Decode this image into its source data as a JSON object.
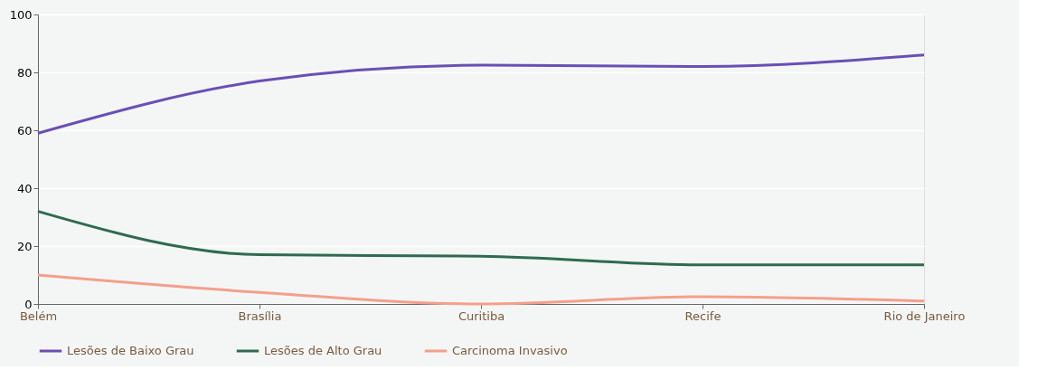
{
  "chart_data": {
    "type": "line",
    "categories": [
      "Belém",
      "Brasília",
      "Curitiba",
      "Recife",
      "Rio de Janeiro"
    ],
    "series": [
      {
        "name": "Lesões de Baixo Grau",
        "color": "#6a4fb5",
        "values": [
          59,
          77,
          82.5,
          82,
          86
        ]
      },
      {
        "name": "Lesões de Alto Grau",
        "color": "#2e6b4f",
        "values": [
          32,
          17,
          16.5,
          13.5,
          13.5
        ]
      },
      {
        "name": "Carcinoma Invasivo",
        "color": "#f4a08a",
        "values": [
          10,
          4,
          0,
          2.5,
          1
        ]
      }
    ],
    "ylim": [
      0,
      100
    ],
    "yticks": [
      0,
      20,
      40,
      60,
      80,
      100
    ],
    "grid": "y",
    "legend": "bottom",
    "marker": "none",
    "line_style": "solid"
  }
}
